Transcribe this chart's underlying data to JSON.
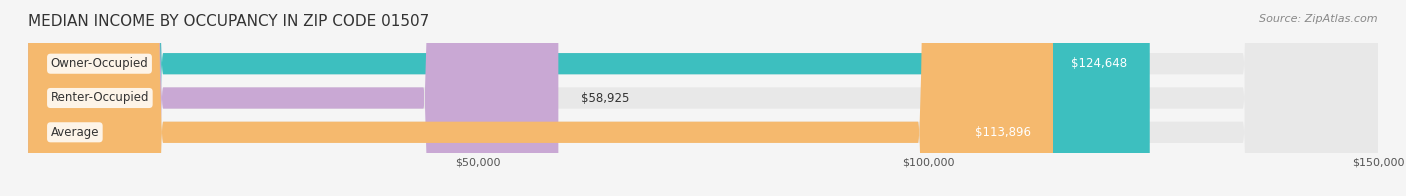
{
  "title": "MEDIAN INCOME BY OCCUPANCY IN ZIP CODE 01507",
  "source": "Source: ZipAtlas.com",
  "categories": [
    "Owner-Occupied",
    "Renter-Occupied",
    "Average"
  ],
  "values": [
    124648,
    58925,
    113896
  ],
  "bar_colors": [
    "#3dbfbf",
    "#c9a8d4",
    "#f5b96e"
  ],
  "label_colors": [
    "white",
    "black",
    "white"
  ],
  "value_labels": [
    "$124,648",
    "$58,925",
    "$113,896"
  ],
  "xlim": [
    0,
    150000
  ],
  "xticks": [
    0,
    50000,
    100000,
    150000
  ],
  "xtick_labels": [
    "$50,000",
    "$100,000",
    "$150,000"
  ],
  "bg_color": "#f5f5f5",
  "bar_bg_color": "#e8e8e8",
  "title_fontsize": 11,
  "source_fontsize": 8,
  "bar_label_fontsize": 8.5,
  "value_label_fontsize": 8.5,
  "tick_fontsize": 8
}
